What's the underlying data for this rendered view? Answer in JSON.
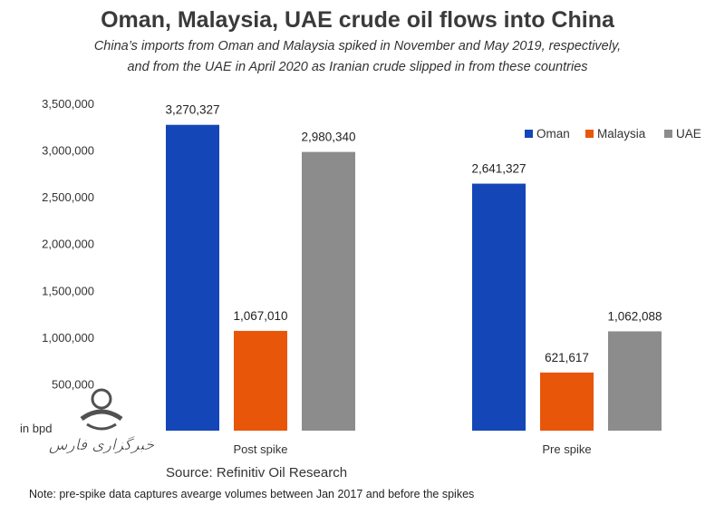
{
  "title": "Oman, Malaysia, UAE crude oil flows into China",
  "subtitle_line1": "China’s imports from Oman and Malaysia spiked in November and May 2019, respectively,",
  "subtitle_line2": "and from the UAE in April 2020 as Iranian crude slipped in from these countries",
  "source": "Source: Refinitiv Oil Research",
  "note": "Note: pre-spike data captures avearge volumes between Jan 2017  and before the spikes",
  "watermark_text": "خبرگزاری فارس",
  "colors": {
    "Oman": "#1446b8",
    "Malaysia": "#e8560a",
    "UAE": "#8c8c8c"
  },
  "chart_data": {
    "type": "bar",
    "title": "Oman, Malaysia, UAE crude oil flows into China",
    "categories": [
      "Post spike",
      "Pre spike"
    ],
    "series": [
      {
        "name": "Oman",
        "values": [
          3270327,
          2641327
        ],
        "labels": [
          "3,270,327",
          "2,641,327"
        ]
      },
      {
        "name": "Malaysia",
        "values": [
          1067010,
          621617
        ],
        "labels": [
          "1,067,010",
          "621,617"
        ]
      },
      {
        "name": "UAE",
        "values": [
          2980340,
          1062088
        ],
        "labels": [
          "2,980,340",
          "1,062,088"
        ]
      }
    ],
    "ylabel": "in bpd",
    "ylim": [
      0,
      3500000
    ],
    "yticks": [
      500000,
      1000000,
      1500000,
      2000000,
      2500000,
      3000000,
      3500000
    ],
    "ytick_labels": [
      "500,000",
      "1,000,000",
      "1,500,000",
      "2,000,000",
      "2,500,000",
      "3,000,000",
      "3,500,000"
    ],
    "legend": [
      "Oman",
      "Malaysia",
      "UAE"
    ],
    "legend_position": "top-right",
    "grid": false
  }
}
